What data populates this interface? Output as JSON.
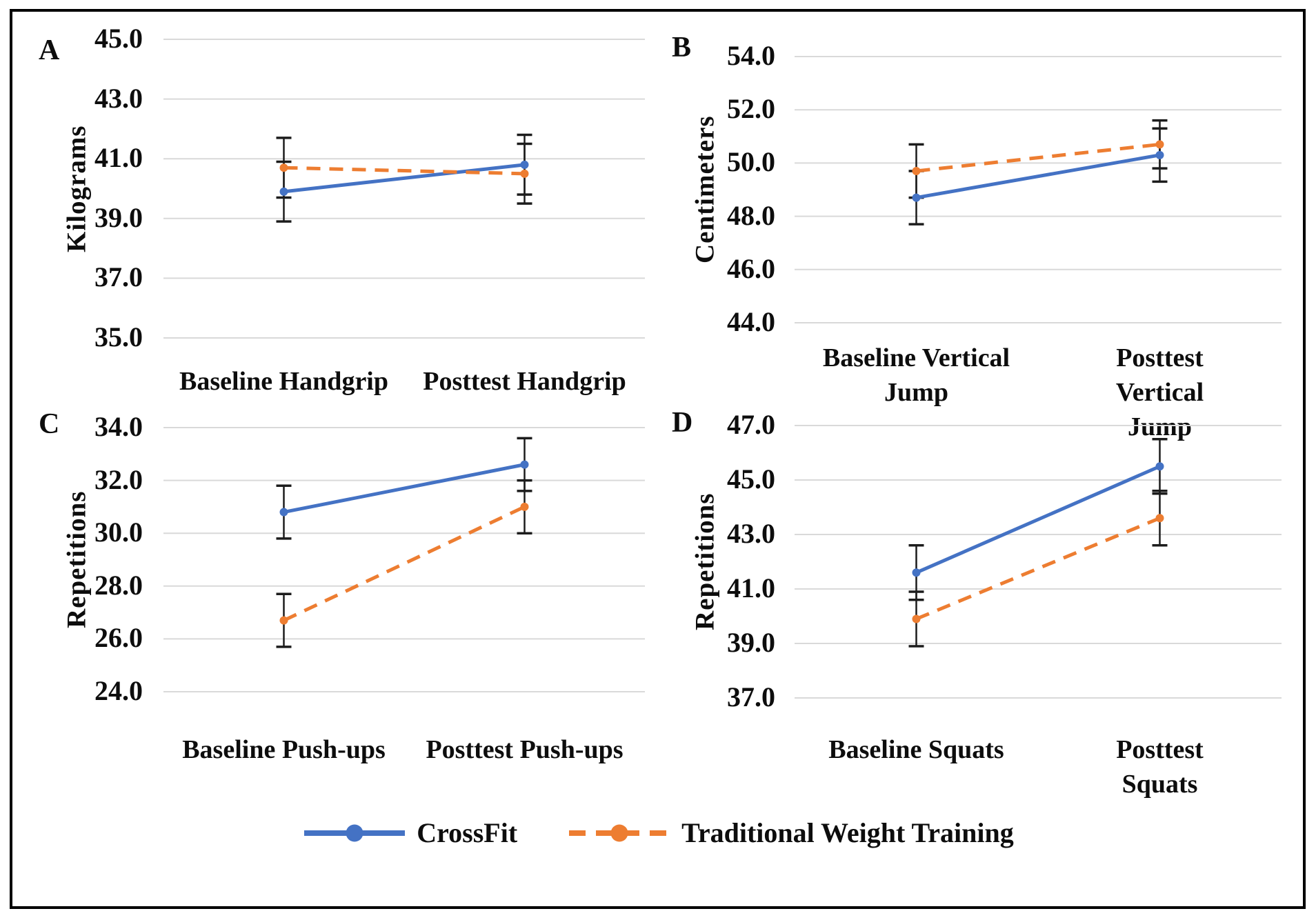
{
  "figure": {
    "background": "#FFFFFF",
    "border_color": "#000000",
    "gridline_color": "#D9D9D9",
    "error_bar_color": "#1C1C1C",
    "accent_blue": "#4472C4",
    "accent_orange": "#ED7D31"
  },
  "legend": {
    "items": [
      {
        "label": "CrossFit",
        "color": "#4472C4",
        "line_style": "solid",
        "marker": "circle"
      },
      {
        "label": "Traditional Weight Training",
        "color": "#ED7D31",
        "line_style": "dashed",
        "marker": "circle"
      }
    ]
  },
  "chart_data": [
    {
      "panel": "A",
      "type": "line",
      "ylabel": "Kilograms",
      "ylim": [
        35.0,
        45.0
      ],
      "ytick_step": 2.0,
      "ytick_labels": [
        "45.0",
        "43.0",
        "41.0",
        "39.0",
        "37.0",
        "35.0"
      ],
      "categories": [
        "Baseline Handgrip",
        "Posttest Handgrip"
      ],
      "grid": true,
      "series": [
        {
          "name": "CrossFit",
          "color": "#4472C4",
          "line_style": "solid",
          "values": [
            39.9,
            40.8
          ],
          "error_bars": [
            1.0,
            1.0
          ]
        },
        {
          "name": "Traditional Weight Training",
          "color": "#ED7D31",
          "line_style": "dashed",
          "values": [
            40.7,
            40.5
          ],
          "error_bars": [
            1.0,
            1.0
          ]
        }
      ]
    },
    {
      "panel": "B",
      "type": "line",
      "ylabel": "Centimeters",
      "ylim": [
        44.0,
        54.0
      ],
      "ytick_step": 2.0,
      "ytick_labels": [
        "54.0",
        "52.0",
        "50.0",
        "48.0",
        "46.0",
        "44.0"
      ],
      "categories": [
        "Baseline Vertical\nJump",
        "Posttest Vertical\nJump"
      ],
      "grid": true,
      "series": [
        {
          "name": "CrossFit",
          "color": "#4472C4",
          "line_style": "solid",
          "values": [
            48.7,
            50.3
          ],
          "error_bars": [
            1.0,
            1.0
          ]
        },
        {
          "name": "Traditional Weight Training",
          "color": "#ED7D31",
          "line_style": "dashed",
          "values": [
            49.7,
            50.7
          ],
          "error_bars": [
            1.0,
            0.9
          ]
        }
      ]
    },
    {
      "panel": "C",
      "type": "line",
      "ylabel": "Repetitions",
      "ylim": [
        24.0,
        34.0
      ],
      "ytick_step": 2.0,
      "ytick_labels": [
        "34.0",
        "32.0",
        "30.0",
        "28.0",
        "26.0",
        "24.0"
      ],
      "categories": [
        "Baseline Push-ups",
        "Posttest Push-ups"
      ],
      "grid": true,
      "series": [
        {
          "name": "CrossFit",
          "color": "#4472C4",
          "line_style": "solid",
          "values": [
            30.8,
            32.6
          ],
          "error_bars": [
            1.0,
            1.0
          ]
        },
        {
          "name": "Traditional Weight Training",
          "color": "#ED7D31",
          "line_style": "dashed",
          "values": [
            26.7,
            31.0
          ],
          "error_bars": [
            1.0,
            1.0
          ]
        }
      ]
    },
    {
      "panel": "D",
      "type": "line",
      "ylabel": "Repetitions",
      "ylim": [
        37.0,
        47.0
      ],
      "ytick_step": 2.0,
      "ytick_labels": [
        "47.0",
        "45.0",
        "43.0",
        "41.0",
        "39.0",
        "37.0"
      ],
      "categories": [
        "Baseline Squats",
        "Posttest Squats"
      ],
      "grid": true,
      "series": [
        {
          "name": "CrossFit",
          "color": "#4472C4",
          "line_style": "solid",
          "values": [
            41.6,
            45.5
          ],
          "error_bars": [
            1.0,
            1.0
          ]
        },
        {
          "name": "Traditional Weight Training",
          "color": "#ED7D31",
          "line_style": "dashed",
          "values": [
            39.9,
            43.6
          ],
          "error_bars": [
            1.0,
            1.0
          ]
        }
      ]
    }
  ]
}
